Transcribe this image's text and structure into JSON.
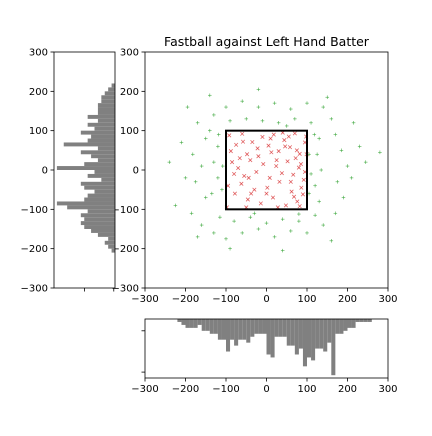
{
  "figure": {
    "title": "Fastball against Left Hand Batter"
  },
  "chart_data": [
    {
      "panel": "main",
      "type": "scatter",
      "title": "Fastball against Left Hand Batter",
      "xlabel": "",
      "ylabel": "",
      "xlim": [
        -300,
        300
      ],
      "ylim": [
        -300,
        300
      ],
      "xticks": [
        "−300",
        "−200",
        "−100",
        "0",
        "100",
        "200",
        "300"
      ],
      "yticks": [
        "300",
        "200",
        "100",
        "0",
        "−100",
        "−200",
        "−300"
      ],
      "grid": false,
      "strike_zone": {
        "x": [
          -100,
          100
        ],
        "y": [
          -100,
          100
        ]
      },
      "series": [
        {
          "marker": "x",
          "color": "#d62728",
          "points": [
            [
              -92,
              88
            ],
            [
              -75,
              64
            ],
            [
              -60,
              92
            ],
            [
              -48,
              40
            ],
            [
              -35,
              71
            ],
            [
              -22,
              55
            ],
            [
              -10,
              84
            ],
            [
              5,
              62
            ],
            [
              18,
              90
            ],
            [
              30,
              48
            ],
            [
              44,
              76
            ],
            [
              58,
              58
            ],
            [
              70,
              93
            ],
            [
              82,
              41
            ],
            [
              95,
              70
            ],
            [
              -85,
              20
            ],
            [
              -70,
              5
            ],
            [
              -55,
              -15
            ],
            [
              -40,
              25
            ],
            [
              -25,
              -5
            ],
            [
              -8,
              15
            ],
            [
              8,
              -20
            ],
            [
              24,
              10
            ],
            [
              38,
              -8
            ],
            [
              52,
              22
            ],
            [
              66,
              -12
            ],
            [
              80,
              6
            ],
            [
              92,
              -25
            ],
            [
              -95,
              -40
            ],
            [
              -78,
              -60
            ],
            [
              -62,
              -35
            ],
            [
              -46,
              -75
            ],
            [
              -30,
              -50
            ],
            [
              -14,
              -85
            ],
            [
              2,
              -45
            ],
            [
              16,
              -70
            ],
            [
              32,
              -30
            ],
            [
              48,
              -90
            ],
            [
              62,
              -55
            ],
            [
              76,
              -80
            ],
            [
              90,
              -62
            ],
            [
              -88,
              48
            ],
            [
              -66,
              30
            ],
            [
              -44,
              -20
            ],
            [
              -20,
              35
            ],
            [
              0,
              -60
            ],
            [
              12,
              45
            ],
            [
              28,
              -95
            ],
            [
              46,
              60
            ],
            [
              72,
              30
            ],
            [
              86,
              -45
            ],
            [
              98,
              85
            ],
            [
              -98,
              -95
            ],
            [
              -50,
              -95
            ],
            [
              40,
              95
            ],
            [
              60,
              -30
            ],
            [
              75,
              50
            ],
            [
              85,
              15
            ],
            [
              95,
              -5
            ],
            [
              99,
              40
            ],
            [
              -80,
              -10
            ],
            [
              -58,
              72
            ],
            [
              10,
              80
            ],
            [
              25,
              25
            ],
            [
              55,
              85
            ],
            [
              68,
              -68
            ],
            [
              82,
              -92
            ],
            [
              -38,
              -60
            ]
          ]
        },
        {
          "marker": "+",
          "color": "#2ca02c",
          "points": [
            [
              -195,
              160
            ],
            [
              -170,
              120
            ],
            [
              -150,
              80
            ],
            [
              -182,
              40
            ],
            [
              -160,
              10
            ],
            [
              -175,
              -30
            ],
            [
              -150,
              -70
            ],
            [
              -185,
              -110
            ],
            [
              -160,
              -140
            ],
            [
              -130,
              -160
            ],
            [
              -100,
              -175
            ],
            [
              -60,
              -160
            ],
            [
              -20,
              -150
            ],
            [
              20,
              -170
            ],
            [
              60,
              -155
            ],
            [
              100,
              -160
            ],
            [
              140,
              -140
            ],
            [
              170,
              -110
            ],
            [
              190,
              -70
            ],
            [
              175,
              -30
            ],
            [
              200,
              10
            ],
            [
              185,
              50
            ],
            [
              170,
              90
            ],
            [
              160,
              130
            ],
            [
              140,
              160
            ],
            [
              100,
              170
            ],
            [
              60,
              155
            ],
            [
              20,
              170
            ],
            [
              -20,
              160
            ],
            [
              -60,
              175
            ],
            [
              -100,
              160
            ],
            [
              -130,
              140
            ],
            [
              -140,
              100
            ],
            [
              -120,
              60
            ],
            [
              -130,
              20
            ],
            [
              -120,
              -20
            ],
            [
              -135,
              -60
            ],
            [
              -115,
              -120
            ],
            [
              -80,
              -130
            ],
            [
              -40,
              -120
            ],
            [
              0,
              -135
            ],
            [
              40,
              -125
            ],
            [
              80,
              -130
            ],
            [
              120,
              -115
            ],
            [
              130,
              -80
            ],
            [
              120,
              -40
            ],
            [
              135,
              0
            ],
            [
              125,
              40
            ],
            [
              130,
              80
            ],
            [
              110,
              120
            ],
            [
              70,
              130
            ],
            [
              30,
              120
            ],
            [
              -10,
              125
            ],
            [
              -50,
              130
            ],
            [
              -90,
              125
            ],
            [
              -200,
              -20
            ],
            [
              -210,
              70
            ],
            [
              210,
              -20
            ],
            [
              230,
              60
            ],
            [
              -225,
              -90
            ],
            [
              215,
              120
            ],
            [
              -140,
              190
            ],
            [
              150,
              185
            ],
            [
              -20,
              205
            ],
            [
              40,
              -205
            ],
            [
              -90,
              -200
            ],
            [
              160,
              -180
            ],
            [
              -170,
              -170
            ],
            [
              245,
              20
            ],
            [
              -240,
              20
            ],
            [
              105,
              40
            ],
            [
              110,
              -10
            ],
            [
              105,
              -60
            ],
            [
              -108,
              10
            ],
            [
              -110,
              -50
            ],
            [
              50,
              112
            ],
            [
              -30,
              -110
            ],
            [
              118,
              90
            ],
            [
              -118,
              90
            ],
            [
              80,
              -112
            ],
            [
              280,
              45
            ]
          ]
        }
      ]
    },
    {
      "panel": "left-histogram",
      "type": "bar",
      "orientation": "horizontal",
      "ylim": [
        -300,
        300
      ],
      "yticks": [
        "300",
        "200",
        "100",
        "0",
        "−100",
        "−200",
        "−300"
      ],
      "bin_width": 10,
      "bins_start": [
        -210,
        -200,
        -190,
        -180,
        -170,
        -160,
        -150,
        -140,
        -130,
        -120,
        -110,
        -100,
        -90,
        -80,
        -70,
        -60,
        -50,
        -40,
        -30,
        -20,
        -10,
        0,
        10,
        20,
        30,
        40,
        50,
        60,
        70,
        80,
        90,
        100,
        110,
        120,
        130,
        140,
        150,
        160,
        170,
        180,
        190,
        200,
        210
      ],
      "values": [
        1,
        2,
        3,
        2,
        5,
        7,
        9,
        10,
        9,
        10,
        8,
        14,
        17,
        9,
        8,
        6,
        9,
        10,
        4,
        8,
        6,
        17,
        9,
        5,
        7,
        10,
        5,
        15,
        8,
        7,
        10,
        6,
        8,
        5,
        8,
        5,
        5,
        5,
        4,
        4,
        3,
        2,
        1
      ]
    },
    {
      "panel": "bottom-histogram",
      "type": "bar",
      "xlim": [
        -300,
        300
      ],
      "xticks": [
        "−300",
        "−200",
        "−100",
        "0",
        "100",
        "200",
        "300"
      ],
      "bin_width": 10,
      "bins_start": [
        -220,
        -210,
        -200,
        -190,
        -180,
        -170,
        -160,
        -150,
        -140,
        -130,
        -120,
        -110,
        -100,
        -90,
        -80,
        -70,
        -60,
        -50,
        -40,
        -30,
        -20,
        -10,
        0,
        10,
        20,
        30,
        40,
        50,
        60,
        70,
        80,
        90,
        100,
        110,
        120,
        130,
        140,
        150,
        160,
        170,
        180,
        190,
        200,
        210,
        220,
        230,
        240,
        250
      ],
      "values": [
        1,
        2,
        3,
        3,
        3,
        2,
        4,
        4,
        5,
        5,
        7,
        7,
        11,
        7,
        9,
        7,
        7,
        8,
        6,
        5,
        5,
        5,
        12,
        13,
        6,
        6,
        6,
        9,
        9,
        12,
        10,
        16,
        13,
        14,
        10,
        10,
        11,
        8,
        19,
        5,
        5,
        4,
        3,
        3,
        1,
        1,
        1,
        1
      ]
    }
  ]
}
